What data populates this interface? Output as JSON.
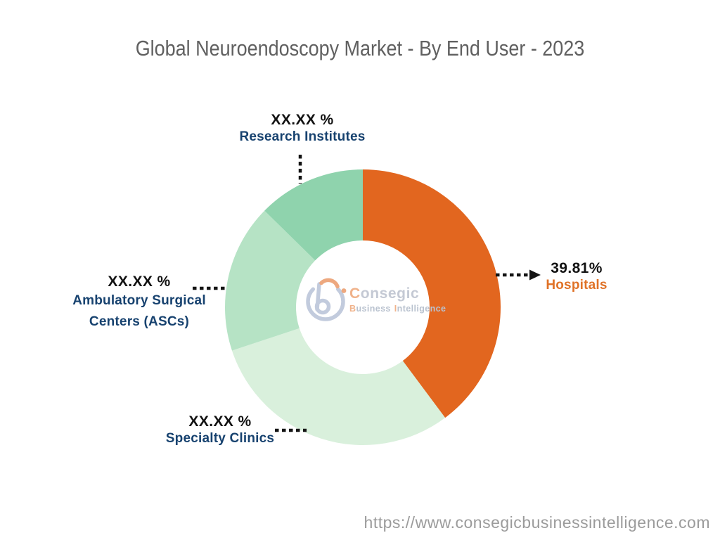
{
  "chart_data": {
    "type": "pie",
    "subtype": "donut",
    "title": "Global Neuroendoscopy Market - By End User - 2023",
    "unit": "%",
    "direction": "clockwise",
    "start_angle_deg": 0,
    "legend_position": "callouts",
    "slices": [
      {
        "label": "Hospitals",
        "display_value": "39.81%",
        "pct": 39.81,
        "color": "#E2661F",
        "label_color": "#E07227"
      },
      {
        "label": "Specialty Clinics",
        "display_value": "XX.XX %",
        "pct": 30.1,
        "color": "#D9F0DC",
        "label_color": "#17426F"
      },
      {
        "label": "Ambulatory Surgical Centers (ASCs)",
        "display_value": "XX.XX %",
        "pct": 17.45,
        "color": "#B6E3C5",
        "label_color": "#17426F"
      },
      {
        "label": "Research Institutes",
        "display_value": "XX.XX %",
        "pct": 12.64,
        "color": "#8FD3AD",
        "label_color": "#17426F"
      }
    ]
  },
  "colors": {
    "title_gray": "#606060",
    "label_navy": "#17426F",
    "hospitals_orange": "#E07227",
    "connector_black": "#141414",
    "url_gray": "#9B9B9B"
  },
  "logo": {
    "wordmark_initial": "C",
    "wordmark_rest": "onsegic",
    "sub_initial_b": "B",
    "sub_rest1": "usiness",
    "sub_initial_i": "I",
    "sub_rest2": "ntelligence"
  },
  "footer": {
    "url": "https://www.consegicbusinessintelligence.com"
  }
}
